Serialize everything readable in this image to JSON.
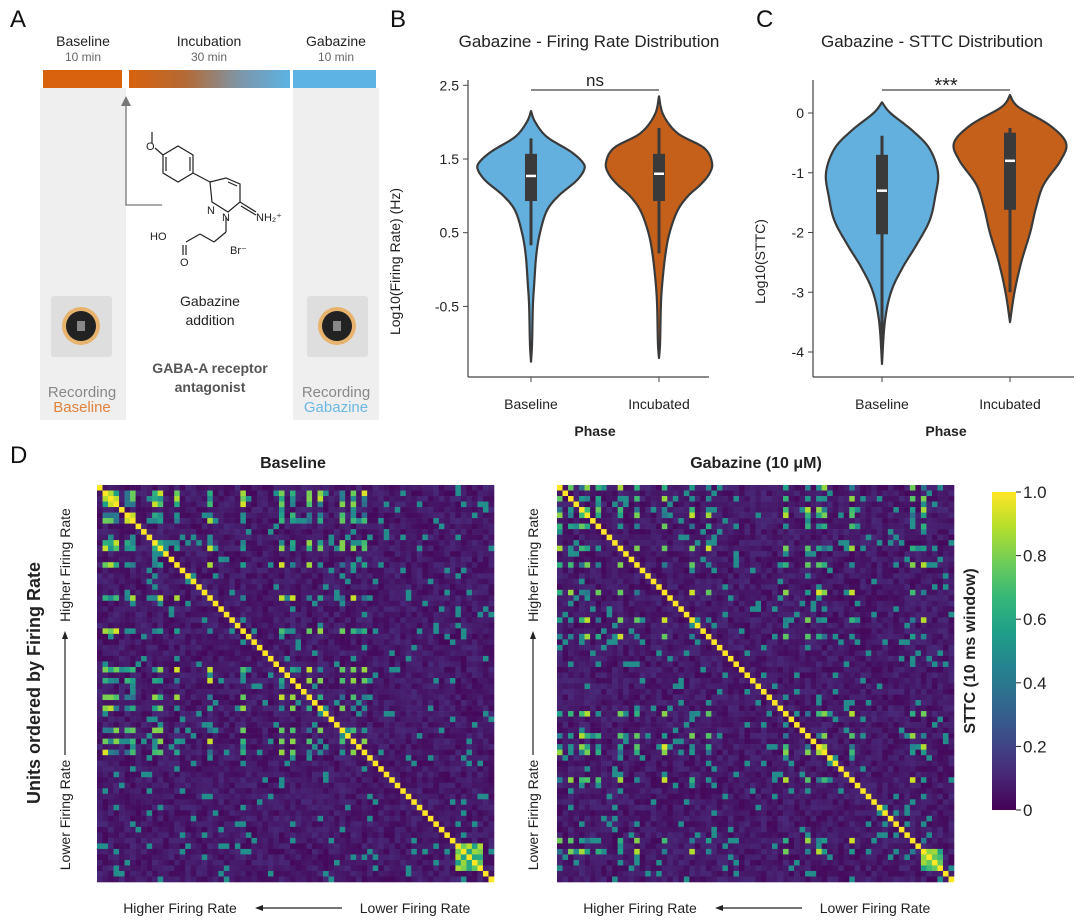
{
  "panel_letters": {
    "a": "A",
    "b": "B",
    "c": "C",
    "d": "D"
  },
  "panel_a": {
    "phases": [
      {
        "label": "Baseline",
        "duration": "10 min"
      },
      {
        "label": "Incubation",
        "duration": "30 min"
      },
      {
        "label": "Gabazine",
        "duration": "10 min"
      }
    ],
    "addition_label_1": "Gabazine",
    "addition_label_2": "addition",
    "mechanism_1": "GABA-A receptor",
    "mechanism_2": "antagonist",
    "recording_left": {
      "line1": "Recording",
      "line2": "Baseline"
    },
    "recording_right": {
      "line1": "Recording",
      "line2": "Gabazine"
    },
    "molecule_labels": {
      "o": "O",
      "n1": "N",
      "n2": "N",
      "nh2": "NH₂⁺",
      "ho": "HO",
      "o2": "O",
      "br": "Br⁻"
    },
    "colors": {
      "baseline": "#d8620e",
      "gabazine": "#5cb3e4",
      "column": "#efefef"
    }
  },
  "chart_data": [
    {
      "type": "violin",
      "title": "Gabazine - Firing Rate Distribution",
      "xlabel": "Phase",
      "ylabel": "Log10(Firing Rate) (Hz)",
      "categories": [
        "Baseline",
        "Incubated"
      ],
      "yticks": [
        "2.5",
        "1.5",
        "0.5",
        "-0.5"
      ],
      "ytick_values": [
        2.5,
        1.5,
        0.5,
        -0.5
      ],
      "ylim": [
        -1.46,
        2.5
      ],
      "significance": "ns",
      "series": [
        {
          "category": "Baseline",
          "color": "#63b0de",
          "min": -1.25,
          "max": 2.15,
          "median": 1.27,
          "q1": 0.93,
          "q3": 1.57,
          "whisker_low": 0.33,
          "whisker_high": 1.78,
          "density": [
            [
              2.15,
              0
            ],
            [
              2.0,
              0.08
            ],
            [
              1.8,
              0.3
            ],
            [
              1.6,
              0.75
            ],
            [
              1.45,
              0.98
            ],
            [
              1.35,
              1.0
            ],
            [
              1.2,
              0.85
            ],
            [
              1.0,
              0.52
            ],
            [
              0.8,
              0.3
            ],
            [
              0.5,
              0.17
            ],
            [
              0.2,
              0.1
            ],
            [
              -0.2,
              0.06
            ],
            [
              -0.5,
              0.035
            ],
            [
              -1.0,
              0.02
            ],
            [
              -1.25,
              0
            ]
          ]
        },
        {
          "category": "Incubated",
          "color": "#c4601a",
          "min": -1.2,
          "max": 2.35,
          "median": 1.3,
          "q1": 0.93,
          "q3": 1.57,
          "whisker_low": 0.22,
          "whisker_high": 1.92,
          "density": [
            [
              2.35,
              0
            ],
            [
              2.1,
              0.08
            ],
            [
              1.85,
              0.35
            ],
            [
              1.65,
              0.85
            ],
            [
              1.45,
              1.0
            ],
            [
              1.3,
              0.95
            ],
            [
              1.15,
              0.78
            ],
            [
              1.0,
              0.55
            ],
            [
              0.8,
              0.35
            ],
            [
              0.5,
              0.2
            ],
            [
              0.2,
              0.12
            ],
            [
              -0.2,
              0.06
            ],
            [
              -0.5,
              0.035
            ],
            [
              -1.0,
              0.02
            ],
            [
              -1.2,
              0
            ]
          ]
        }
      ]
    },
    {
      "type": "violin",
      "title": "Gabazine - STTC Distribution",
      "xlabel": "Phase",
      "ylabel": "Log10(STTC)",
      "categories": [
        "Baseline",
        "Incubated"
      ],
      "yticks": [
        "0",
        "-1",
        "-2",
        "-3",
        "-4"
      ],
      "ytick_values": [
        0,
        -1,
        -2,
        -3,
        -4
      ],
      "ylim": [
        -4.4,
        0.45
      ],
      "significance": "***",
      "series": [
        {
          "category": "Baseline",
          "color": "#63b0de",
          "min": -4.2,
          "max": 0.18,
          "median": -1.3,
          "q1": -2.03,
          "q3": -0.7,
          "whisker_low": -3.9,
          "whisker_high": -0.38,
          "density": [
            [
              0.18,
              0
            ],
            [
              0.0,
              0.15
            ],
            [
              -0.3,
              0.55
            ],
            [
              -0.6,
              0.85
            ],
            [
              -1.0,
              1.0
            ],
            [
              -1.4,
              0.95
            ],
            [
              -1.8,
              0.85
            ],
            [
              -2.2,
              0.62
            ],
            [
              -2.6,
              0.36
            ],
            [
              -3.0,
              0.16
            ],
            [
              -3.5,
              0.05
            ],
            [
              -4.2,
              0
            ]
          ]
        },
        {
          "category": "Incubated",
          "color": "#c4601a",
          "min": -3.5,
          "max": 0.3,
          "median": -0.8,
          "q1": -1.62,
          "q3": -0.33,
          "whisker_low": -3.0,
          "whisker_high": -0.25,
          "density": [
            [
              0.3,
              0
            ],
            [
              0.1,
              0.15
            ],
            [
              -0.2,
              0.7
            ],
            [
              -0.5,
              1.0
            ],
            [
              -0.8,
              0.9
            ],
            [
              -1.2,
              0.6
            ],
            [
              -1.6,
              0.46
            ],
            [
              -2.0,
              0.36
            ],
            [
              -2.5,
              0.2
            ],
            [
              -3.0,
              0.08
            ],
            [
              -3.5,
              0
            ]
          ]
        }
      ]
    },
    {
      "type": "heatmap",
      "title": "Baseline",
      "ylabel": "Units ordered by Firing Rate",
      "y_top": "Higher Firing Rate",
      "y_bottom": "Lower Firing Rate",
      "x_left": "Higher Firing Rate",
      "x_right": "Lower Firing Rate",
      "colormap": "viridis",
      "clim": [
        0,
        1
      ],
      "diagonal": 1.0,
      "hub_units": [
        1,
        2,
        3,
        5,
        6,
        10,
        11,
        14,
        20,
        26,
        33,
        35,
        38,
        40,
        44,
        46,
        48
      ],
      "cluster_units": [
        65,
        66,
        67,
        68,
        69
      ]
    },
    {
      "type": "heatmap",
      "title": "Gabazine (10 μM)",
      "y_top": "Higher Firing Rate",
      "y_bottom": "Lower Firing Rate",
      "x_left": "Higher Firing Rate",
      "x_right": "Lower Firing Rate",
      "colormap": "viridis",
      "clim": [
        0,
        1
      ],
      "diagonal": 1.0,
      "hub_units": [
        0,
        2,
        4,
        5,
        7,
        11,
        14,
        19,
        24,
        27,
        41,
        45,
        47,
        48,
        53,
        64,
        66
      ],
      "cluster_units": [
        66,
        67,
        68,
        69
      ]
    }
  ],
  "colorbar": {
    "label": "STTC (10 ms window)",
    "ticks": [
      "1.0",
      "0.8",
      "0.6",
      "0.4",
      "0.2",
      "0"
    ],
    "tick_values": [
      1.0,
      0.8,
      0.6,
      0.4,
      0.2,
      0
    ]
  }
}
